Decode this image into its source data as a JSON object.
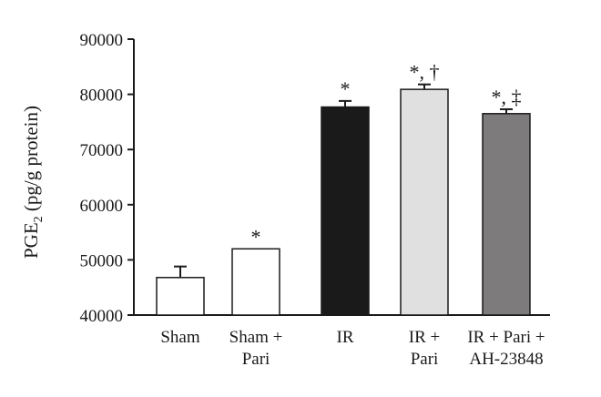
{
  "chart_data": {
    "type": "bar",
    "ylabel_main": "PGE",
    "ylabel_sub": "2",
    "ylabel_rest": " (pg/g protein)",
    "ylim": [
      40000,
      90000
    ],
    "yticks": [
      40000,
      50000,
      60000,
      70000,
      80000,
      90000
    ],
    "ytick_labels": [
      "40000",
      "50000",
      "60000",
      "70000",
      "80000",
      "90000"
    ],
    "categories": [
      {
        "lines": [
          "Sham"
        ]
      },
      {
        "lines": [
          "Sham +",
          "Pari"
        ]
      },
      {
        "lines": [
          "IR"
        ]
      },
      {
        "lines": [
          "IR +",
          "Pari"
        ]
      },
      {
        "lines": [
          "IR + Pari +",
          "AH-23848"
        ]
      }
    ],
    "series": [
      {
        "values": [
          46800,
          52000,
          77700,
          80900,
          76500
        ],
        "errors": [
          2000,
          0,
          1100,
          900,
          800
        ],
        "annotations": [
          "",
          "*",
          "*",
          "*, †",
          "*, ‡"
        ],
        "colors": [
          "#ffffff",
          "#ffffff",
          "#1a1a1a",
          "#e0e0e0",
          "#7d7b7b"
        ]
      }
    ]
  }
}
